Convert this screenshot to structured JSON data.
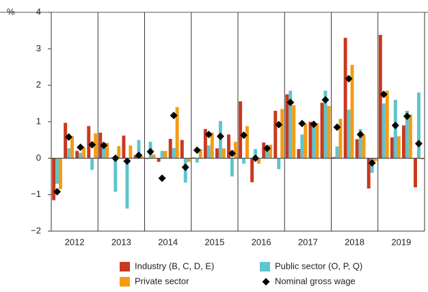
{
  "chart_data": {
    "type": "bar",
    "unit": "%",
    "categories": [
      null,
      null,
      null,
      null,
      null,
      null,
      null,
      null,
      null,
      null,
      null,
      null,
      null,
      null,
      null,
      null,
      null,
      null,
      null,
      null,
      null,
      null,
      null,
      null,
      null,
      null,
      null,
      null,
      null,
      null,
      null,
      null
    ],
    "groups": [
      "2012",
      "2013",
      "2014",
      "2015",
      "2016",
      "2017",
      "2018",
      "2019"
    ],
    "ylim": [
      -2,
      4
    ],
    "yticks": [
      {
        "value": -2,
        "label": "−2"
      },
      {
        "value": -1,
        "label": "−1"
      },
      0,
      1,
      2,
      3,
      4
    ],
    "grid": false,
    "series": [
      {
        "name": "Industry (B, C, D, E)",
        "color": "#c8391f",
        "values": [
          -1.15,
          0.97,
          0.2,
          0.88,
          0.7,
          0.02,
          0.62,
          0.08,
          -0.02,
          -0.1,
          0.53,
          0.5,
          0.02,
          0.8,
          0.27,
          0.65,
          1.56,
          -0.66,
          0.43,
          1.3,
          1.75,
          0.25,
          1.0,
          1.52,
          0.03,
          3.3,
          0.52,
          -0.83,
          3.38,
          0.57,
          0.9,
          -0.8
        ]
      },
      {
        "name": "Public sector (O, P, Q)",
        "color": "#5ec4cf",
        "values": [
          -0.7,
          0.27,
          0.15,
          -0.32,
          0.35,
          -0.92,
          -1.38,
          0.5,
          0.45,
          0.2,
          0.28,
          -0.67,
          -0.12,
          0.35,
          1.02,
          -0.5,
          -0.15,
          0.25,
          0.3,
          -0.3,
          1.85,
          0.65,
          0.88,
          1.85,
          0.32,
          1.33,
          0.8,
          -0.4,
          1.5,
          1.6,
          1.3,
          1.8
        ]
      },
      {
        "name": "Private sector",
        "color": "#f39c12",
        "values": [
          -0.85,
          0.6,
          0.3,
          0.68,
          0.42,
          0.33,
          0.35,
          0.05,
          0.1,
          0.2,
          1.4,
          -0.1,
          0.25,
          0.7,
          0.27,
          0.45,
          0.88,
          -0.15,
          0.37,
          1.35,
          1.45,
          0.95,
          0.96,
          1.43,
          1.08,
          2.56,
          0.65,
          -0.08,
          1.85,
          0.6,
          1.2,
          -0.03
        ]
      },
      {
        "name": "Nominal gross wage",
        "color": "#000000",
        "marker": "diamond",
        "values": [
          -0.92,
          0.58,
          0.3,
          0.37,
          0.35,
          0.0,
          -0.08,
          0.08,
          0.18,
          -0.55,
          1.17,
          -0.25,
          0.22,
          0.65,
          0.6,
          0.13,
          0.63,
          0.0,
          0.27,
          0.92,
          1.53,
          0.95,
          0.93,
          1.6,
          0.85,
          2.18,
          0.65,
          -0.13,
          1.75,
          0.9,
          1.15,
          0.4
        ]
      }
    ]
  }
}
